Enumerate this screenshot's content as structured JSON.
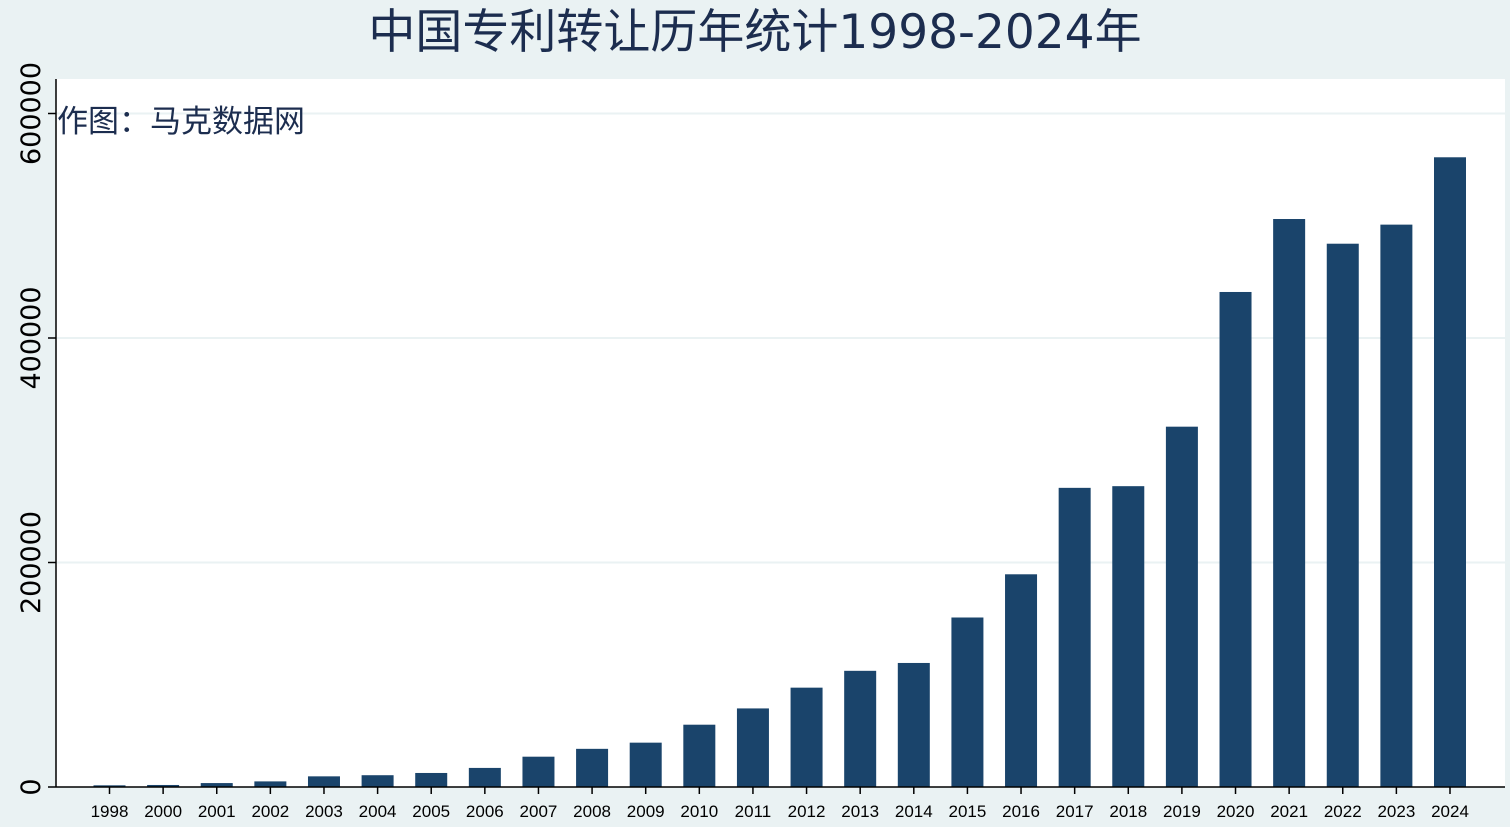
{
  "title": "中国专利转让历年统计1998-2024年",
  "watermark": "作图：马克数据网",
  "colors": {
    "background": "#eaf2f3",
    "plot_background": "#ffffff",
    "bar": "#1a446b",
    "grid": "#eaf2f3",
    "title": "#1c2d4f",
    "axis": "#000000"
  },
  "chart_data": {
    "type": "bar",
    "title": "中国专利转让历年统计1998-2024年",
    "xlabel": "",
    "ylabel": "",
    "categories": [
      "1998",
      "2000",
      "2001",
      "2002",
      "2003",
      "2004",
      "2005",
      "2006",
      "2007",
      "2008",
      "2009",
      "2010",
      "2011",
      "2012",
      "2013",
      "2014",
      "2015",
      "2016",
      "2017",
      "2018",
      "2019",
      "2020",
      "2021",
      "2022",
      "2023",
      "2024"
    ],
    "values": [
      1500,
      1800,
      3500,
      5000,
      9500,
      10500,
      12500,
      17000,
      27000,
      34000,
      39500,
      55500,
      70000,
      88500,
      103500,
      110500,
      151000,
      189500,
      266500,
      268000,
      321000,
      441000,
      506000,
      484000,
      501000,
      561000
    ],
    "ylim": [
      0,
      625000
    ],
    "yticks": [
      0,
      200000,
      400000,
      600000
    ],
    "ytick_labels": [
      "0",
      "200000",
      "400000",
      "600000"
    ],
    "grid": true,
    "legend": "none"
  }
}
